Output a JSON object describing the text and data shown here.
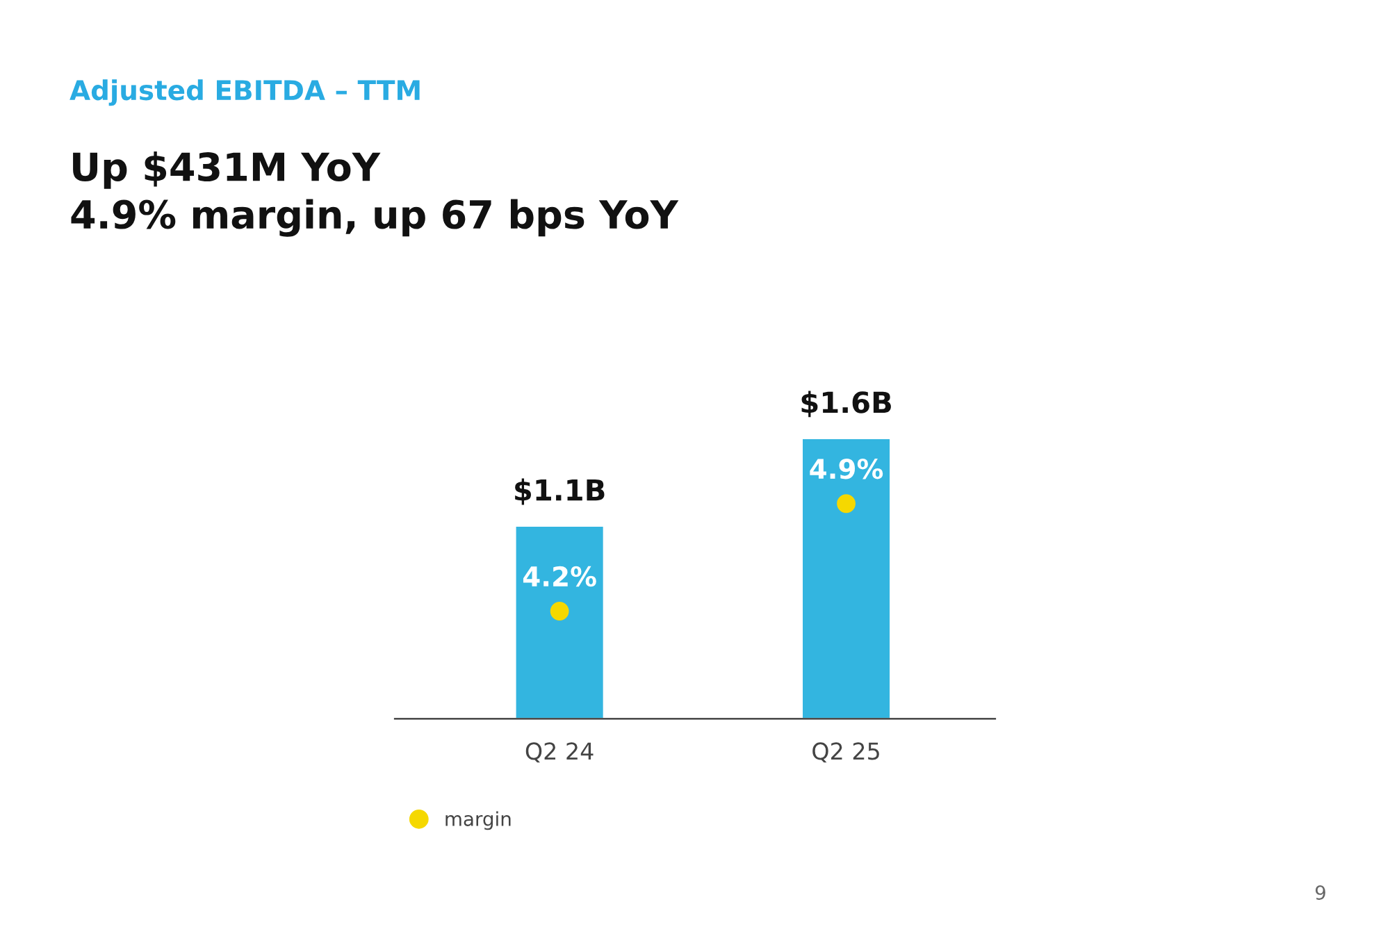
{
  "chart_data": {
    "type": "bar",
    "title": "Adjusted EBITDA – TTM",
    "subtitle": "Up $431M YoY\n4.9% margin, up 67 bps YoY",
    "categories": [
      "Q2 24",
      "Q2 25"
    ],
    "series": [
      {
        "color": "#33b5e0",
        "values": [
          1.1,
          1.6
        ],
        "value_labels": [
          "$1.1B",
          "$1.6B"
        ]
      },
      {
        "type": "scatter",
        "name": "margin",
        "axis": "y2",
        "color": "#f5d800",
        "values": [
          4.2,
          4.9
        ],
        "value_labels": [
          "4.2%",
          "4.9%"
        ]
      }
    ],
    "tick_labels": "x",
    "grid": false,
    "legend": "bottom left",
    "marker": "circle",
    "annotations": [
      "9"
    ]
  }
}
